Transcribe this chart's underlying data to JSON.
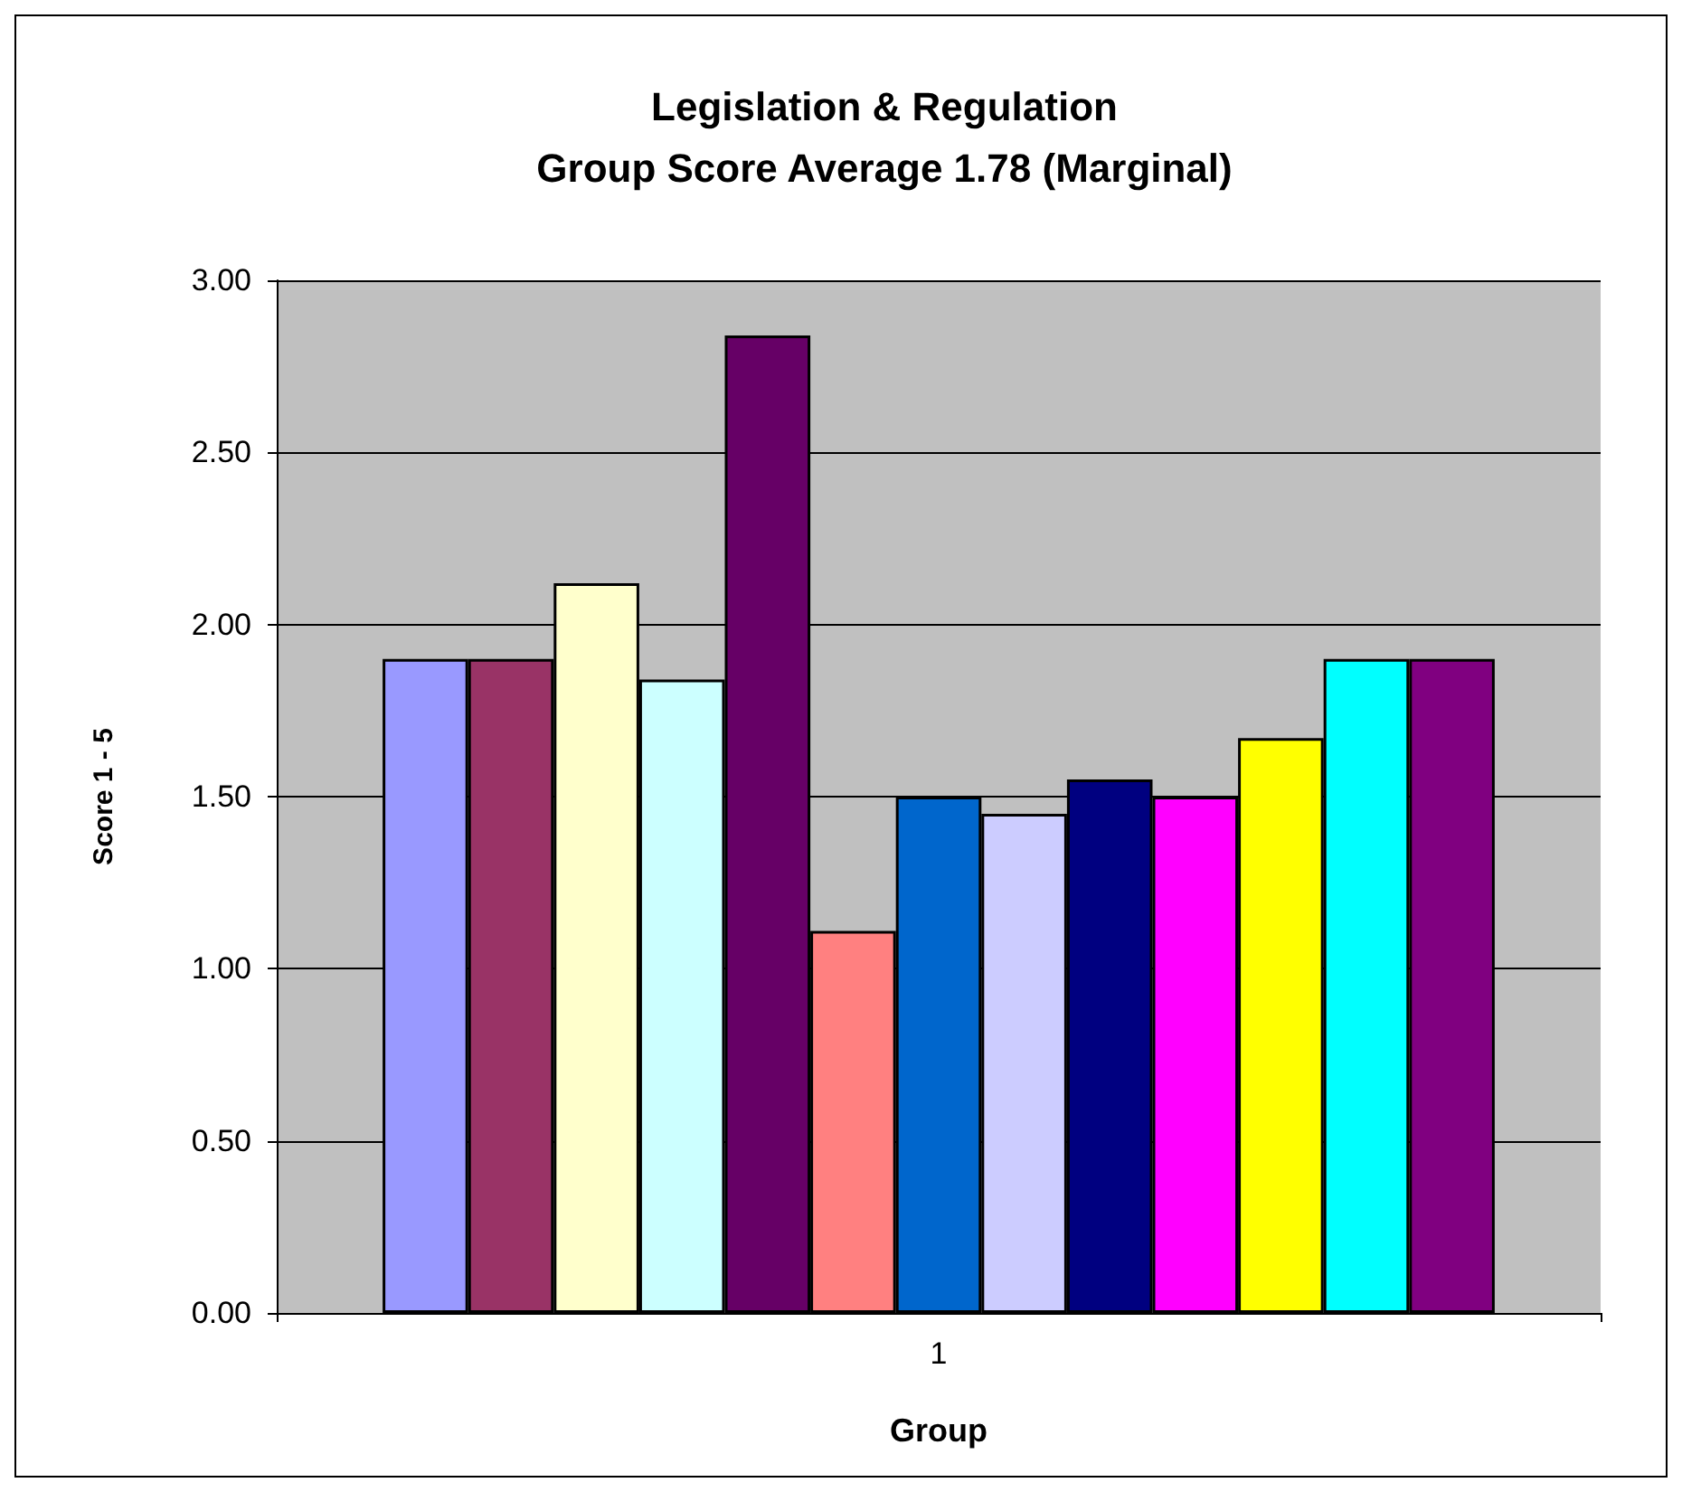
{
  "chart_data": {
    "type": "bar",
    "title": "Legislation & Regulation\nGroup Score Average 1.78 (Marginal)",
    "xlabel": "Group",
    "ylabel": "Score 1 - 5",
    "categories": [
      "1"
    ],
    "series": [
      {
        "color": "#9999ff",
        "values": [
          1.9
        ]
      },
      {
        "color": "#993366",
        "values": [
          1.9
        ]
      },
      {
        "color": "#ffffcc",
        "values": [
          2.12
        ]
      },
      {
        "color": "#ccffff",
        "values": [
          1.84
        ]
      },
      {
        "color": "#660066",
        "values": [
          2.84
        ]
      },
      {
        "color": "#ff8080",
        "values": [
          1.11
        ]
      },
      {
        "color": "#0066cc",
        "values": [
          1.5
        ]
      },
      {
        "color": "#ccccff",
        "values": [
          1.45
        ]
      },
      {
        "color": "#000080",
        "values": [
          1.55
        ]
      },
      {
        "color": "#ff00ff",
        "values": [
          1.5
        ]
      },
      {
        "color": "#ffff00",
        "values": [
          1.67
        ]
      },
      {
        "color": "#00ffff",
        "values": [
          1.9
        ]
      },
      {
        "color": "#800080",
        "values": [
          1.9
        ]
      }
    ],
    "ylim": [
      0,
      3
    ],
    "yticks": [
      {
        "value": 0,
        "label": "0.00"
      },
      {
        "value": 0.5,
        "label": "0.50"
      },
      {
        "value": 1,
        "label": "1.00"
      },
      {
        "value": 1.5,
        "label": "1.50"
      },
      {
        "value": 2,
        "label": "2.00"
      },
      {
        "value": 2.5,
        "label": "2.50"
      },
      {
        "value": 3,
        "label": "3.00"
      }
    ],
    "grid": "y"
  }
}
